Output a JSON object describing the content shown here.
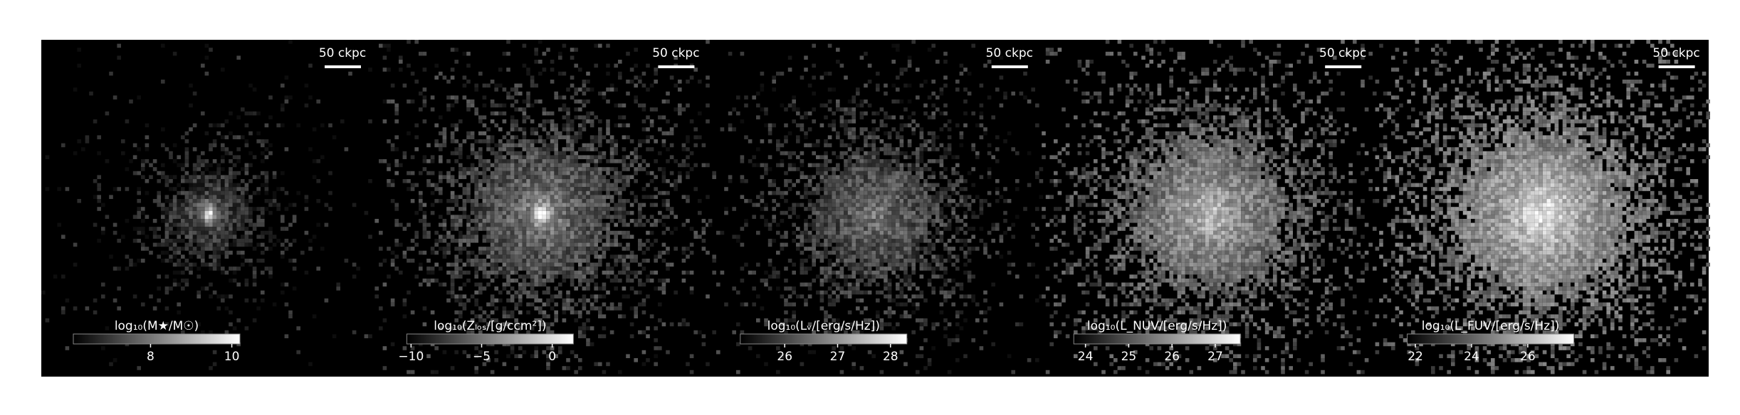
{
  "panels": [
    {
      "scale_bar": "50 ckpc",
      "colorbar_label": "log₁₀(M★/M☉)",
      "clim": [
        6.1,
        10.2
      ],
      "colorbar_ticks": [
        8,
        10
      ]
    },
    {
      "scale_bar": "50 ckpc",
      "colorbar_label": "log₁₀(Zₗₒₛ/[g/ccm²])",
      "clim": [
        -10.3,
        1.5
      ],
      "colorbar_ticks": [
        {
          "value": -10,
          "label": "−10"
        },
        {
          "value": -5,
          "label": "−5"
        },
        0
      ]
    },
    {
      "scale_bar": "50 ckpc",
      "colorbar_label": "log₁₀(Lᵥ/[erg/s/Hz])",
      "clim": [
        25.16,
        28.31
      ],
      "colorbar_ticks": [
        26,
        27,
        28
      ]
    },
    {
      "scale_bar": "50 ckpc",
      "colorbar_label": "log₁₀(L_NUV/[erg/s/Hz])",
      "clim": [
        23.73,
        27.58
      ],
      "colorbar_ticks": [
        24,
        25,
        26,
        27
      ]
    },
    {
      "scale_bar": "50 ckpc",
      "colorbar_label": "log₁₀(L_FUV/[erg/s/Hz])",
      "clim": [
        21.71,
        27.64
      ],
      "colorbar_ticks": [
        22,
        24,
        26
      ]
    }
  ]
}
